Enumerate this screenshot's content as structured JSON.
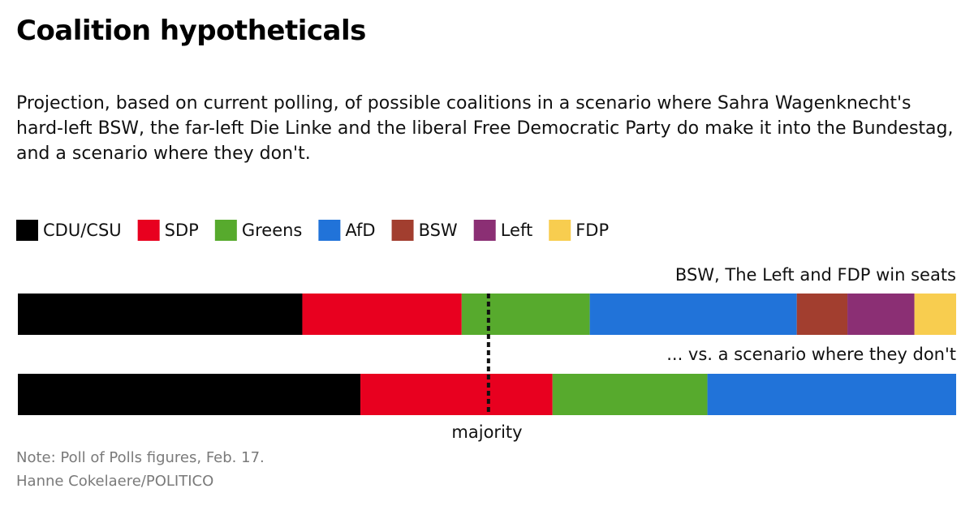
{
  "chart_data": {
    "type": "stacked-hbar",
    "title": "Coalition hypotheticals",
    "subtitle": "Projection, based on current polling, of possible coalitions in a scenario where Sahra Wagenknecht's hard-left BSW, the far-left Die Linke and the liberal Free Democratic Party do make it into the Bundestag, and a scenario where they don't.",
    "categories": [
      "BSW, The Left and FDP win seats",
      "... vs. a scenario where they don't"
    ],
    "series": [
      {
        "name": "CDU/CSU",
        "color": "#000000",
        "values": [
          191,
          230
        ]
      },
      {
        "name": "SDP",
        "color": "#e8001f",
        "values": [
          107,
          129
        ]
      },
      {
        "name": "Greens",
        "color": "#57aa2d",
        "values": [
          86,
          104
        ]
      },
      {
        "name": "AfD",
        "color": "#2173d9",
        "values": [
          139,
          167
        ]
      },
      {
        "name": "BSW",
        "color": "#a23e2f",
        "values": [
          34,
          null
        ]
      },
      {
        "name": "Left",
        "color": "#8b2f74",
        "values": [
          45,
          null
        ]
      },
      {
        "name": "FDP",
        "color": "#f8cd4f",
        "values": [
          28,
          null
        ]
      }
    ],
    "majority": {
      "label": "majority",
      "value": 316
    },
    "notes": [
      "Note: Poll of Polls figures, Feb. 17.",
      "Hanne Cokelaere/POLITICO"
    ]
  }
}
